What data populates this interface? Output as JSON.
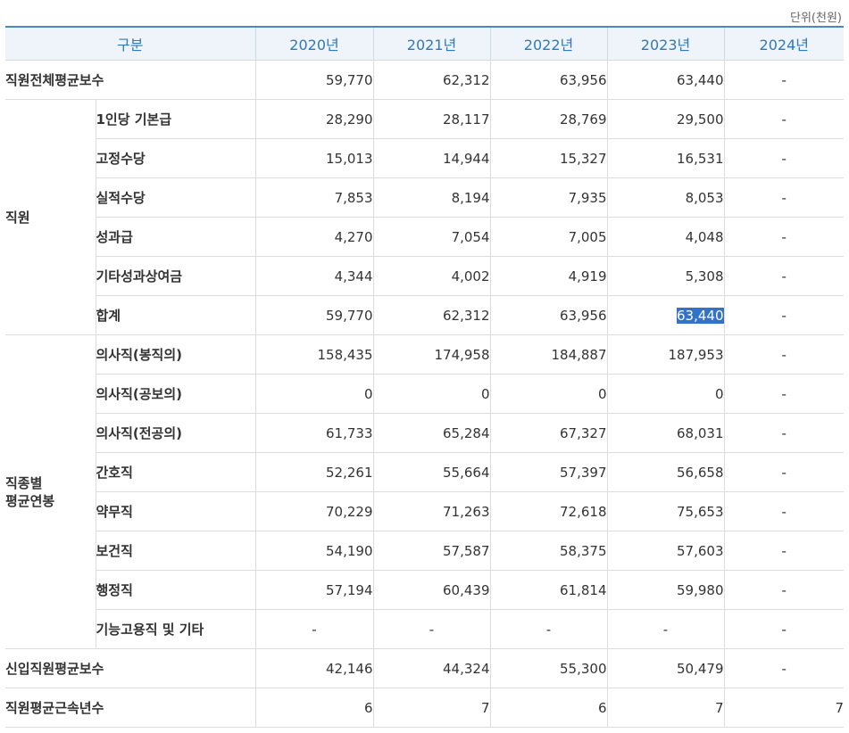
{
  "unit_label": "단위(천원)",
  "header": [
    "구분",
    "2020년",
    "2021년",
    "2022년",
    "2023년",
    "2024년"
  ],
  "rows_top": [
    {
      "label": "직원전체평균보수",
      "values": [
        "59,770",
        "62,312",
        "63,956",
        "63,440",
        "-"
      ]
    }
  ],
  "group_staff": {
    "label": "직원",
    "rows": [
      {
        "label": "1인당 기본급",
        "values": [
          "28,290",
          "28,117",
          "28,769",
          "29,500",
          "-"
        ]
      },
      {
        "label": "고정수당",
        "values": [
          "15,013",
          "14,944",
          "15,327",
          "16,531",
          "-"
        ]
      },
      {
        "label": "실적수당",
        "values": [
          "7,853",
          "8,194",
          "7,935",
          "8,053",
          "-"
        ]
      },
      {
        "label": "성과급",
        "values": [
          "4,270",
          "7,054",
          "7,005",
          "4,048",
          "-"
        ]
      },
      {
        "label": "기타성과상여금",
        "values": [
          "4,344",
          "4,002",
          "4,919",
          "5,308",
          "-"
        ]
      },
      {
        "label": "합계",
        "values": [
          "59,770",
          "62,312",
          "63,956",
          "63,440",
          "-"
        ]
      }
    ]
  },
  "group_job": {
    "label_line1": "직종별",
    "label_line2": "평균연봉",
    "rows": [
      {
        "label": "의사직(봉직의)",
        "values": [
          "158,435",
          "174,958",
          "184,887",
          "187,953",
          "-"
        ]
      },
      {
        "label": "의사직(공보의)",
        "values": [
          "0",
          "0",
          "0",
          "0",
          "-"
        ]
      },
      {
        "label": "의사직(전공의)",
        "values": [
          "61,733",
          "65,284",
          "67,327",
          "68,031",
          "-"
        ]
      },
      {
        "label": "간호직",
        "values": [
          "52,261",
          "55,664",
          "57,397",
          "56,658",
          "-"
        ]
      },
      {
        "label": "약무직",
        "values": [
          "70,229",
          "71,263",
          "72,618",
          "75,653",
          "-"
        ]
      },
      {
        "label": "보건직",
        "values": [
          "54,190",
          "57,587",
          "58,375",
          "57,603",
          "-"
        ]
      },
      {
        "label": "행정직",
        "values": [
          "57,194",
          "60,439",
          "61,814",
          "59,980",
          "-"
        ]
      },
      {
        "label": "기능고용직 및 기타",
        "values": [
          "-",
          "-",
          "-",
          "-",
          "-"
        ]
      }
    ]
  },
  "rows_bottom": [
    {
      "label": "신입직원평균보수",
      "values": [
        "42,146",
        "44,324",
        "55,300",
        "50,479",
        "-"
      ]
    },
    {
      "label": "직원평균근속년수",
      "values": [
        "6",
        "7",
        "6",
        "7",
        "7"
      ]
    }
  ]
}
